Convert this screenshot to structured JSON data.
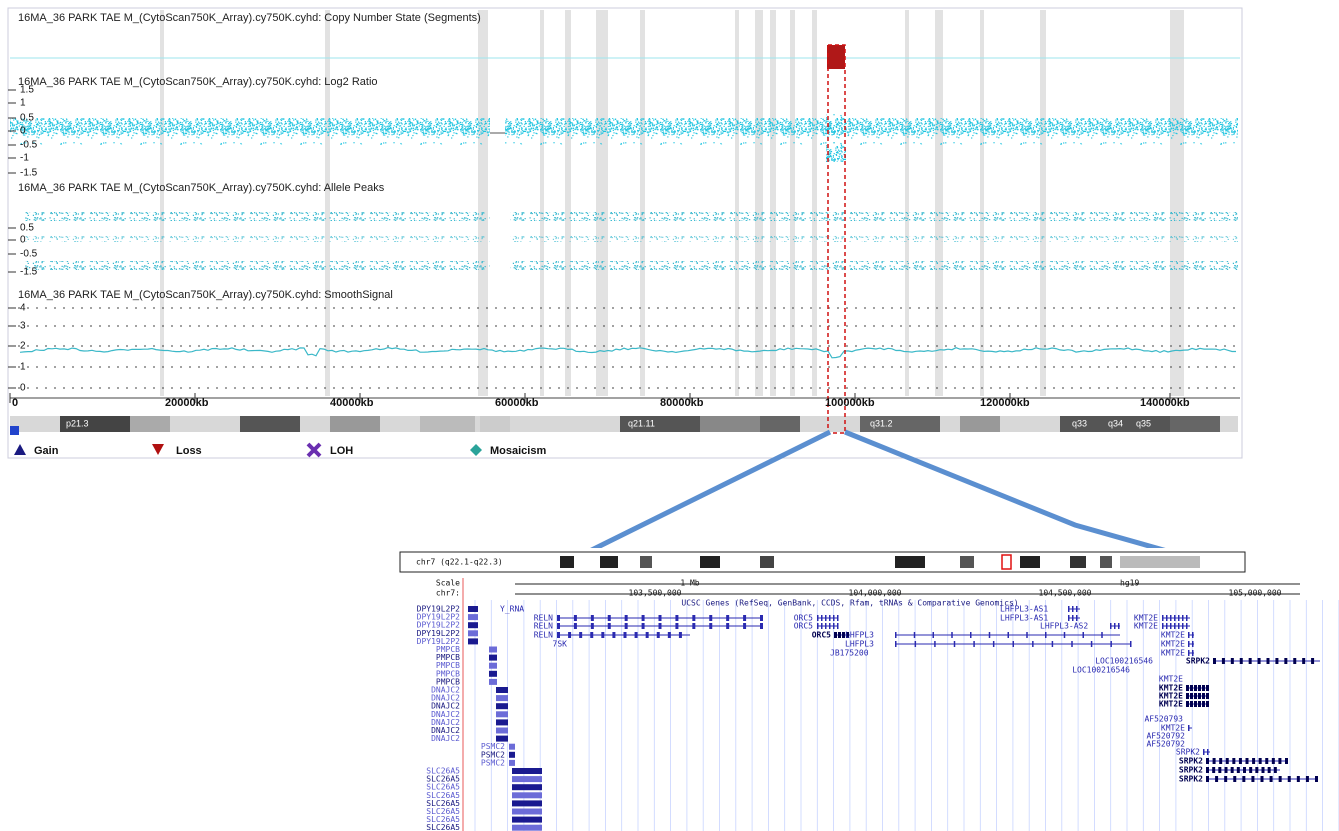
{
  "top": {
    "tracks": [
      {
        "title": "16MA_36 PARK TAE M_(CytoScan750K_Array).cy750K.cyhd: Copy Number State (Segments)",
        "yticks": []
      },
      {
        "title": "16MA_36 PARK TAE M_(CytoScan750K_Array).cy750K.cyhd: Log2 Ratio",
        "yticks": [
          "1.5",
          "1",
          "0.5",
          "0",
          "-0.5",
          "-1",
          "-1.5"
        ]
      },
      {
        "title": "16MA_36 PARK TAE M_(CytoScan750K_Array).cy750K.cyhd: Allele Peaks",
        "yticks": [
          "0.5",
          "0",
          "-0.5",
          "-1.5"
        ]
      },
      {
        "title": "16MA_36 PARK TAE M_(CytoScan750K_Array).cy750K.cyhd: SmoothSignal",
        "yticks": [
          "4",
          "3",
          "2",
          "1",
          "0"
        ]
      }
    ],
    "xticks": [
      "0",
      "20000kb",
      "40000kb",
      "60000kb",
      "80000kb",
      "100000kb",
      "120000kb",
      "140000kb"
    ],
    "bands": [
      "p21.3",
      "q21.11",
      "q31.2",
      "q33",
      "q34",
      "q35"
    ],
    "legend": [
      "Gain",
      "Loss",
      "LOH",
      "Mosaicism"
    ]
  },
  "bottom": {
    "ideogram": "chr7 (q22.1-q22.3)",
    "scale": "Scale",
    "chrom": "chr7:",
    "size": "1 Mb",
    "build": "hg19",
    "positions": [
      "103,500,000",
      "104,000,000",
      "104,500,000",
      "105,000,000"
    ],
    "track_title": "UCSC Genes (RefSeq, GenBank, CCDS, Rfam, tRNAs & Comparative Genomics)",
    "left_labels": [
      "DPY19L2P2",
      "DPY19L2P2",
      "DPY19L2P2",
      "DPY19L2P2",
      "DPY19L2P2",
      "PMPCB",
      "PMPCB",
      "PMPCB",
      "PMPCB",
      "PMPCB",
      "DNAJC2",
      "DNAJC2",
      "DNAJC2",
      "DNAJC2",
      "DNAJC2",
      "DNAJC2",
      "DNAJC2",
      "PSMC2",
      "PSMC2",
      "PSMC2",
      "SLC26A5",
      "SLC26A5",
      "SLC26A5",
      "SLC26A5",
      "SLC26A5",
      "SLC26A5",
      "SLC26A5",
      "SLC26A5"
    ],
    "genes": [
      "Y_RNA",
      "RELN",
      "RELN",
      "RELN",
      "7SK",
      "ORC5",
      "ORC5",
      "ORC5",
      "LHFPL3",
      "LHFPL3",
      "JB175200",
      "LHFPL3-AS1",
      "LHFPL3-AS1",
      "LHFPL3-AS2",
      "KMT2E",
      "KMT2E",
      "KMT2E",
      "KMT2E",
      "KMT2E",
      "LOC100216546",
      "LOC100216546",
      "SRPK2",
      "KMT2E",
      "KMT2E",
      "KMT2E",
      "KMT2E",
      "AF520793",
      "KMT2E",
      "AF520792",
      "AF520792",
      "SRPK2",
      "SRPK2",
      "SRPK2",
      "SRPK2"
    ]
  }
}
